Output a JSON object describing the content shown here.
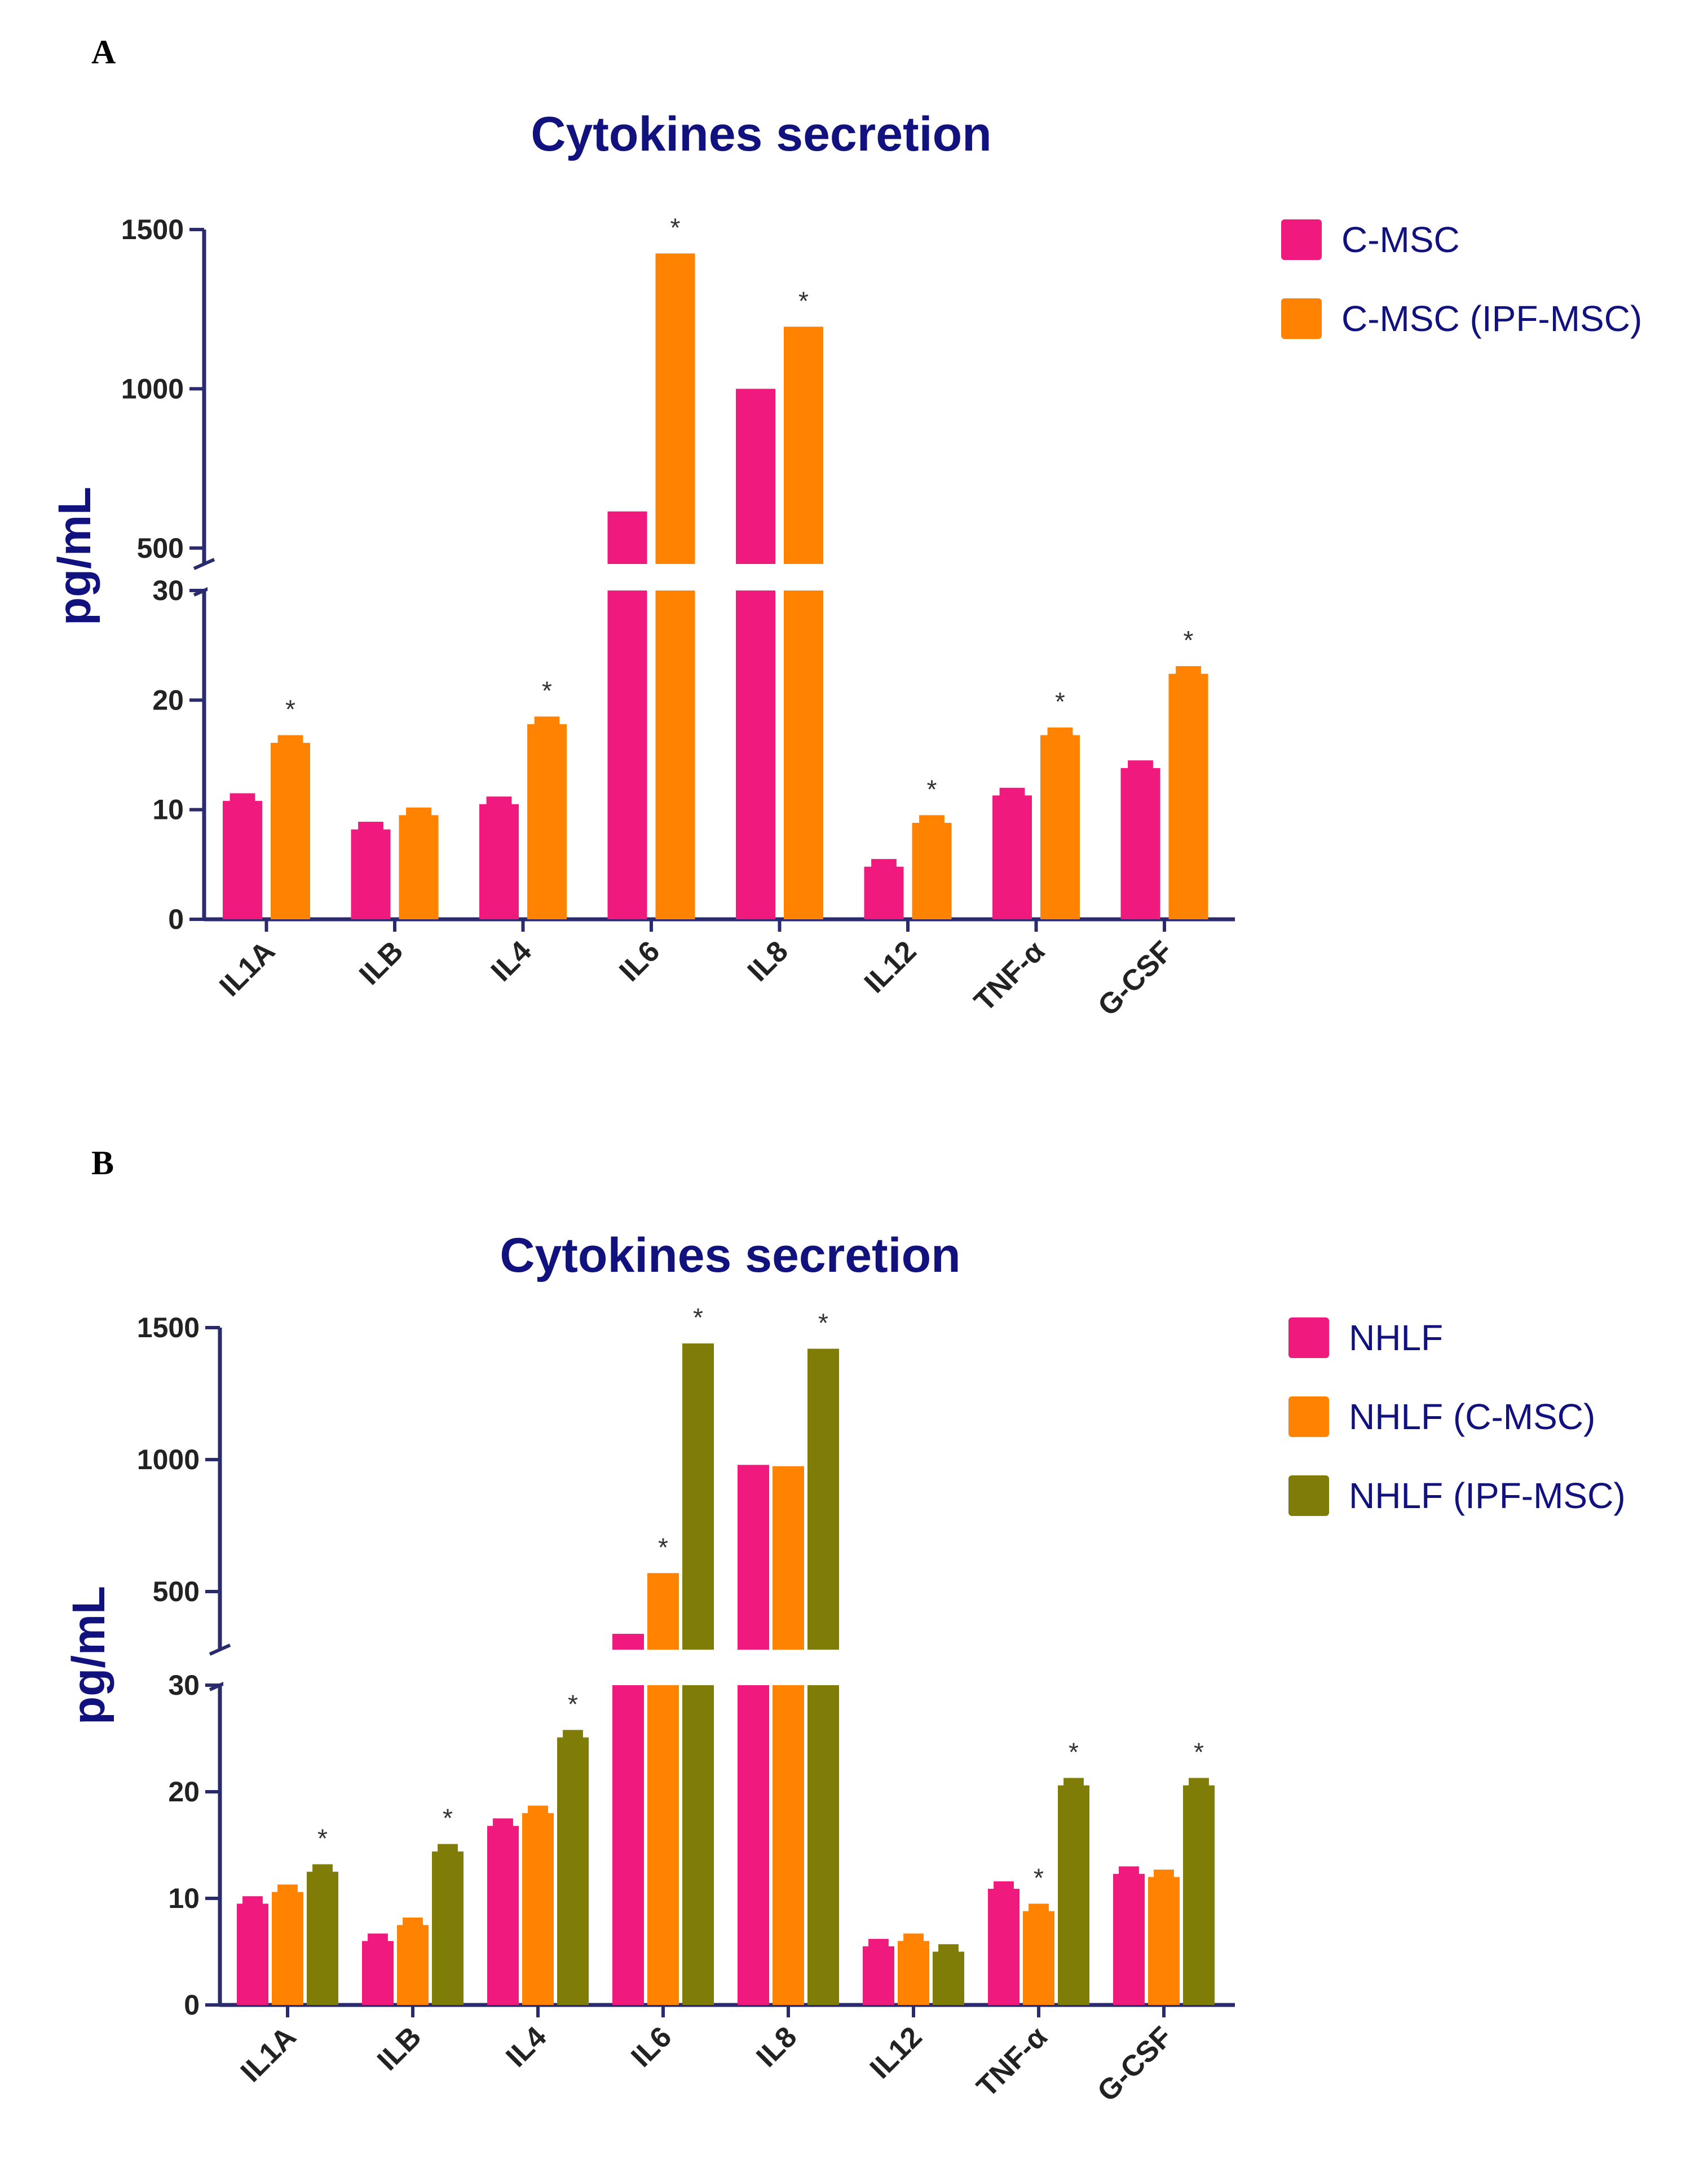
{
  "chart_data": [
    {
      "panel": "A",
      "type": "bar",
      "title": "Cytokines secretion",
      "ylabel": "pg/mL",
      "xlabel": "",
      "categories": [
        "IL1A",
        "ILB",
        "IL4",
        "IL6",
        "IL8",
        "IL12",
        "TNF-α",
        "G-CSF"
      ],
      "axis_break": {
        "lower_range": [
          0,
          30
        ],
        "upper_range": [
          450,
          1500
        ],
        "lower_ticks": [
          "0",
          "10",
          "20",
          "30"
        ],
        "upper_ticks": [
          "500",
          "1000",
          "1500"
        ]
      },
      "series": [
        {
          "name": "C-MSC",
          "color": "#f0197d",
          "values": [
            10.8,
            8.2,
            10.5,
            615,
            1000,
            4.8,
            11.3,
            13.8
          ],
          "errors": [
            0.7,
            0.7,
            0.7,
            0,
            0,
            0.7,
            0.7,
            0.7
          ],
          "significance": [
            "",
            "",
            "",
            "",
            "",
            "",
            "",
            ""
          ]
        },
        {
          "name": "C-MSC (IPF-MSC)",
          "color": "#ff8200",
          "values": [
            16.1,
            9.5,
            17.8,
            1425,
            1195,
            8.8,
            16.8,
            22.4
          ],
          "errors": [
            0.7,
            0.7,
            0.7,
            0,
            0,
            0.7,
            0.7,
            0.7
          ],
          "significance": [
            "*",
            "",
            "*",
            "*",
            "*",
            "*",
            "*",
            "*"
          ]
        }
      ],
      "legend_position": "right"
    },
    {
      "panel": "B",
      "type": "bar",
      "title": "Cytokines secretion",
      "ylabel": "pg/mL",
      "xlabel": "",
      "categories": [
        "IL1A",
        "ILB",
        "IL4",
        "IL6",
        "IL8",
        "IL12",
        "TNF-α",
        "G-CSF"
      ],
      "axis_break": {
        "lower_range": [
          0,
          30
        ],
        "upper_range": [
          280,
          1500
        ],
        "lower_ticks": [
          "0",
          "10",
          "20",
          "30"
        ],
        "upper_ticks": [
          "500",
          "1000",
          "1500"
        ]
      },
      "series": [
        {
          "name": "NHLF",
          "color": "#f0197d",
          "values": [
            9.5,
            6.0,
            16.8,
            340,
            980,
            5.5,
            10.9,
            12.3
          ],
          "errors": [
            0.7,
            0.7,
            0.7,
            0,
            0,
            0.7,
            0.7,
            0.7
          ],
          "significance": [
            "",
            "",
            "",
            "",
            "",
            "",
            "",
            ""
          ]
        },
        {
          "name": "NHLF (C-MSC)",
          "color": "#ff8200",
          "values": [
            10.6,
            7.5,
            18.0,
            570,
            975,
            6.0,
            8.8,
            12.0
          ],
          "errors": [
            0.7,
            0.7,
            0.7,
            0,
            0,
            0.7,
            0.7,
            0.7
          ],
          "significance": [
            "",
            "",
            "",
            "*",
            "",
            "",
            "*",
            ""
          ]
        },
        {
          "name": "NHLF (IPF-MSC)",
          "color": "#7f7d08",
          "values": [
            12.5,
            14.4,
            25.1,
            1440,
            1420,
            5.0,
            20.6,
            20.6
          ],
          "errors": [
            0.7,
            0.7,
            0.7,
            0,
            0,
            0.7,
            0.7,
            0.7
          ],
          "significance": [
            "*",
            "*",
            "*",
            "*",
            "*",
            "",
            "*",
            "*"
          ]
        }
      ],
      "legend_position": "right"
    }
  ]
}
